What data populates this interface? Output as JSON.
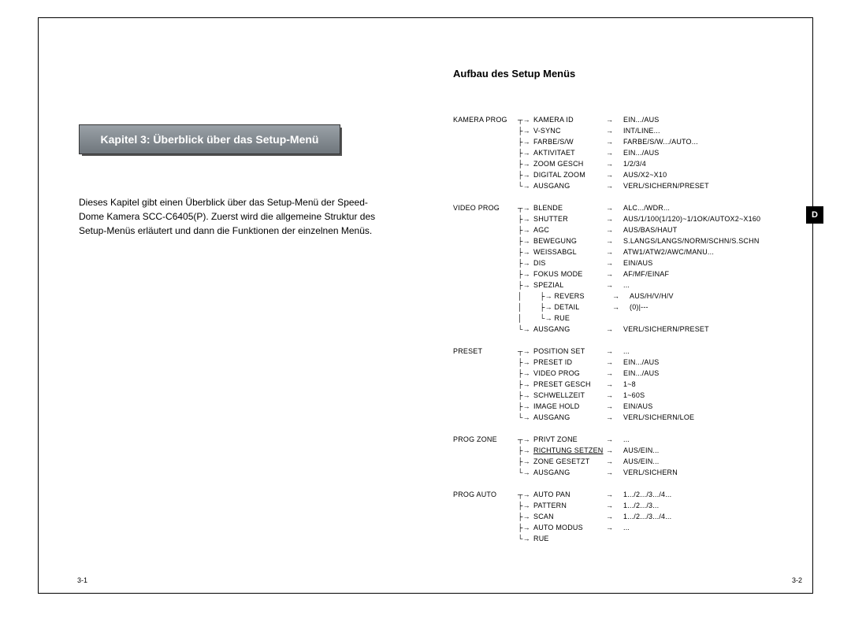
{
  "sideTab": "D",
  "chapterTitle": "Kapitel 3: Überblick über das Setup-Menü",
  "bodyText": "Dieses Kapitel gibt einen Überblick über das Setup-Menü der Speed-Dome Kamera SCC-C6405(P). Zuerst wird die allgemeine Struktur des Setup-Menüs erläutert und dann die Funktionen der einzelnen Menüs.",
  "rightTitle": "Aufbau des Setup Menüs",
  "pageLeft": "3-1",
  "pageRight": "3-2",
  "tree": [
    {
      "name": "KAMERA PROG",
      "items": [
        {
          "n": "KAMERA ID",
          "v": "EIN.../AUS"
        },
        {
          "n": "V-SYNC",
          "v": "INT/LINE..."
        },
        {
          "n": "FARBE/S/W",
          "v": "FARBE/S/W.../AUTO..."
        },
        {
          "n": "AKTIVITAET",
          "v": "EIN.../AUS"
        },
        {
          "n": "ZOOM GESCH",
          "v": "1/2/3/4"
        },
        {
          "n": "DIGITAL ZOOM",
          "v": "AUS/X2~X10"
        },
        {
          "n": "AUSGANG",
          "v": "VERL/SICHERN/PRESET"
        }
      ]
    },
    {
      "name": "VIDEO PROG",
      "items": [
        {
          "n": "BLENDE",
          "v": "ALC.../WDR..."
        },
        {
          "n": "SHUTTER",
          "v": "AUS/1/100(1/120)~1/1OK/AUTOX2~X160"
        },
        {
          "n": "AGC",
          "v": "AUS/BAS/HAUT"
        },
        {
          "n": "BEWEGUNG",
          "v": "S.LANGS/LANGS/NORM/SCHN/S.SCHN"
        },
        {
          "n": "WEISSABGL",
          "v": "ATW1/ATW2/AWC/MANU..."
        },
        {
          "n": "DIS",
          "v": "EIN/AUS"
        },
        {
          "n": "FOKUS MODE",
          "v": "AF/MF/EINAF"
        },
        {
          "n": "SPEZIAL",
          "v": "...",
          "sub": [
            {
              "n": "REVERS",
              "v": "AUS/H/V/H/V"
            },
            {
              "n": "DETAIL",
              "v": "(0)|---"
            },
            {
              "n": "RUE",
              "v": ""
            }
          ]
        },
        {
          "n": "AUSGANG",
          "v": "VERL/SICHERN/PRESET"
        }
      ]
    },
    {
      "name": "PRESET",
      "items": [
        {
          "n": "POSITION SET",
          "v": "..."
        },
        {
          "n": "PRESET ID",
          "v": "EIN.../AUS"
        },
        {
          "n": "VIDEO PROG",
          "v": "EIN.../AUS"
        },
        {
          "n": "PRESET GESCH",
          "v": "1~8"
        },
        {
          "n": "SCHWELLZEIT",
          "v": "1~60S"
        },
        {
          "n": "IMAGE HOLD",
          "v": "EIN/AUS"
        },
        {
          "n": "AUSGANG",
          "v": "VERL/SICHERN/LOE"
        }
      ]
    },
    {
      "name": "PROG ZONE",
      "items": [
        {
          "n": "PRIVT  ZONE",
          "v": "..."
        },
        {
          "n": "RICHTUNG SETZEN",
          "v": "AUS/EIN...",
          "underline": true
        },
        {
          "n": "ZONE GESETZT",
          "v": "AUS/EIN..."
        },
        {
          "n": "AUSGANG",
          "v": "VERL/SICHERN"
        }
      ]
    },
    {
      "name": "PROG AUTO",
      "items": [
        {
          "n": "AUTO PAN",
          "v": "1.../2.../3.../4..."
        },
        {
          "n": "PATTERN",
          "v": "1.../2.../3..."
        },
        {
          "n": "SCAN",
          "v": "1.../2.../3.../4..."
        },
        {
          "n": "AUTO MODUS",
          "v": "..."
        },
        {
          "n": "RUE",
          "v": ""
        }
      ]
    }
  ]
}
